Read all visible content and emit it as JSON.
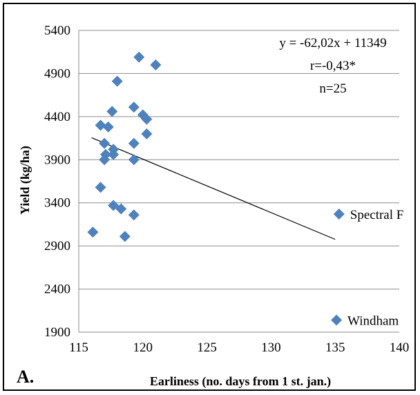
{
  "chart_data": {
    "type": "scatter",
    "title": "",
    "panel_label": "A.",
    "xlabel": "Earliness (no. days from 1 st. jan.)",
    "ylabel": "Yield (kg/ha)",
    "xlim": [
      115,
      140
    ],
    "ylim": [
      1900,
      5400
    ],
    "x_ticks": [
      "115",
      "120",
      "125",
      "130",
      "135",
      "140"
    ],
    "y_ticks": [
      "1900",
      "2400",
      "2900",
      "3400",
      "3900",
      "4400",
      "4900",
      "5400"
    ],
    "grid": "horizontal",
    "marker_color": "#4F81BD",
    "points": [
      {
        "x": 116.1,
        "y": 3060
      },
      {
        "x": 116.7,
        "y": 4300
      },
      {
        "x": 116.7,
        "y": 3580
      },
      {
        "x": 117.0,
        "y": 4090
      },
      {
        "x": 117.0,
        "y": 3900
      },
      {
        "x": 117.1,
        "y": 3960
      },
      {
        "x": 117.3,
        "y": 4280
      },
      {
        "x": 117.6,
        "y": 4460
      },
      {
        "x": 117.7,
        "y": 4020
      },
      {
        "x": 117.7,
        "y": 3960
      },
      {
        "x": 117.7,
        "y": 3370
      },
      {
        "x": 118.0,
        "y": 4810
      },
      {
        "x": 118.3,
        "y": 3330
      },
      {
        "x": 118.6,
        "y": 3010
      },
      {
        "x": 119.3,
        "y": 4510
      },
      {
        "x": 119.3,
        "y": 4090
      },
      {
        "x": 119.3,
        "y": 3900
      },
      {
        "x": 119.3,
        "y": 3260
      },
      {
        "x": 119.7,
        "y": 5090
      },
      {
        "x": 120.0,
        "y": 4420
      },
      {
        "x": 120.3,
        "y": 4370
      },
      {
        "x": 120.3,
        "y": 4200
      },
      {
        "x": 121.0,
        "y": 5000
      }
    ],
    "labeled_points": [
      {
        "name": "Spectral F",
        "x": 135.3,
        "y": 3270
      },
      {
        "name": "Windham",
        "x": 135.1,
        "y": 2040
      }
    ],
    "trendline": {
      "x": [
        116,
        135
      ],
      "slope": -62.02,
      "intercept": 11349
    },
    "annotations": [
      "y = -62,02x + 11349",
      "r=-0,43*",
      "n=25"
    ]
  }
}
